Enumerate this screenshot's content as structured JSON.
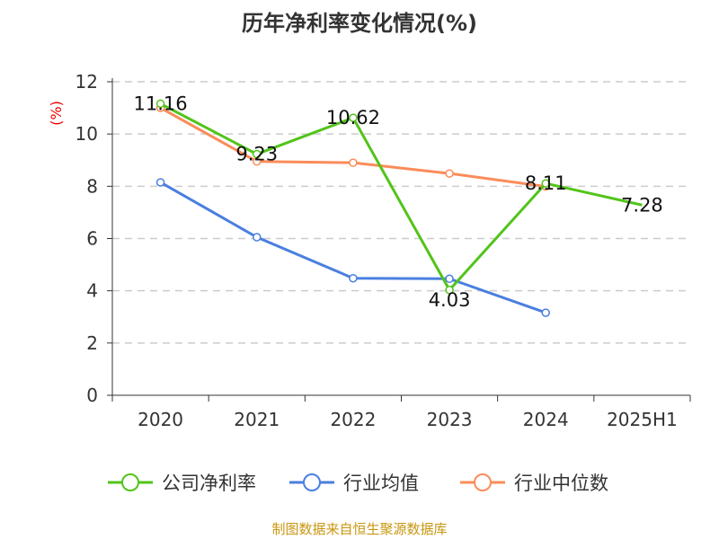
{
  "chart_data": {
    "type": "line",
    "title": "历年净利率变化情况(%)",
    "ylabel": "(%)",
    "categories": [
      "2020",
      "2021",
      "2022",
      "2023",
      "2024",
      "2025H1"
    ],
    "ylim": [
      0,
      12
    ],
    "yticks": [
      0,
      2,
      4,
      6,
      8,
      10,
      12
    ],
    "grid": true,
    "legend_position": "bottom",
    "series": [
      {
        "name": "公司净利率",
        "color": "#52c41a",
        "values": [
          11.16,
          9.23,
          10.62,
          4.03,
          8.11,
          7.28
        ],
        "labels": [
          "11.16",
          "9.23",
          "10.62",
          "4.03",
          "8.11",
          "7.28"
        ]
      },
      {
        "name": "行业均值",
        "color": "#4a7fe0",
        "values": [
          8.15,
          6.05,
          4.48,
          4.46,
          3.16,
          null
        ]
      },
      {
        "name": "行业中位数",
        "color": "#fb8c5a",
        "values": [
          11.0,
          8.95,
          8.9,
          8.49,
          7.99,
          null
        ]
      }
    ]
  },
  "source": "制图数据来自恒生聚源数据库"
}
